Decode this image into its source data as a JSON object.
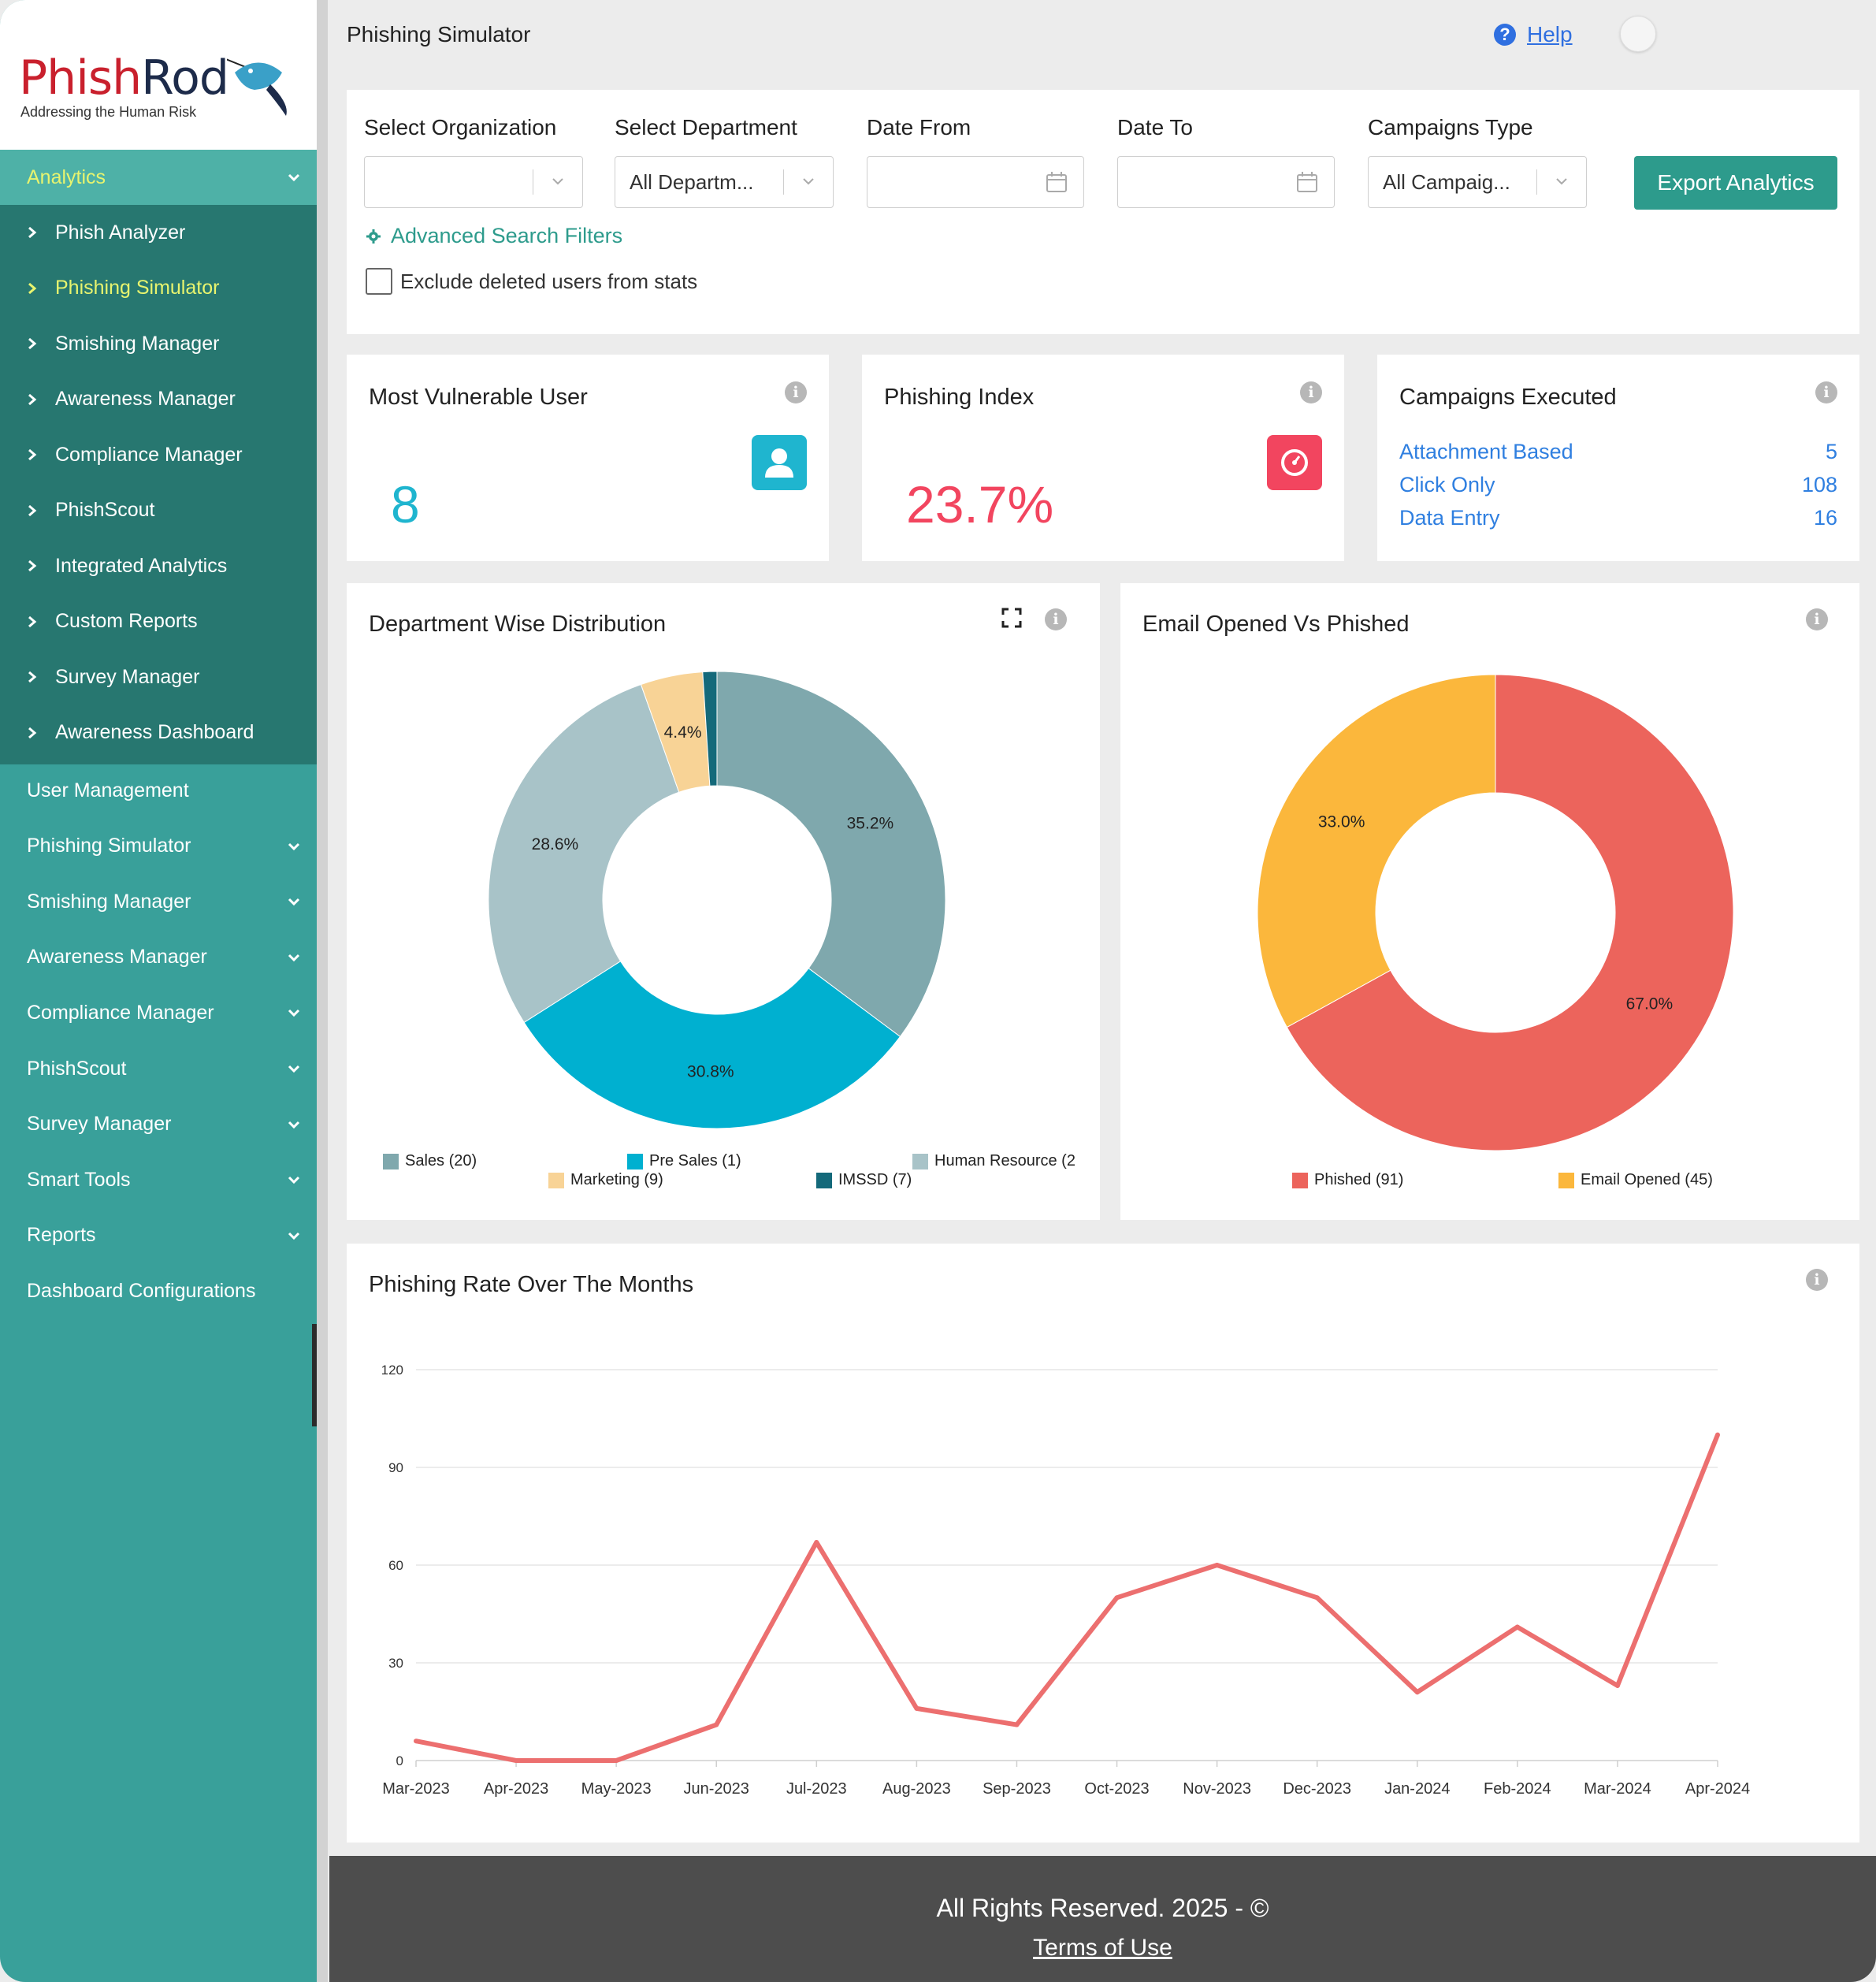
{
  "brand": {
    "name_part1": "Phish",
    "name_part2": "Rod",
    "tagline": "Addressing the Human Risk"
  },
  "sidebar": {
    "analytics_label": "Analytics",
    "sub_items": [
      {
        "label": "Phish Analyzer",
        "active": false
      },
      {
        "label": "Phishing Simulator",
        "active": true
      },
      {
        "label": "Smishing Manager",
        "active": false
      },
      {
        "label": "Awareness Manager",
        "active": false
      },
      {
        "label": "Compliance Manager",
        "active": false
      },
      {
        "label": "PhishScout",
        "active": false
      },
      {
        "label": "Integrated Analytics",
        "active": false
      },
      {
        "label": "Custom Reports",
        "active": false
      },
      {
        "label": "Survey Manager",
        "active": false
      },
      {
        "label": "Awareness Dashboard",
        "active": false
      }
    ],
    "main_items": [
      {
        "label": "User Management",
        "has_chevron": false
      },
      {
        "label": "Phishing Simulator",
        "has_chevron": true
      },
      {
        "label": "Smishing Manager",
        "has_chevron": true
      },
      {
        "label": "Awareness Manager",
        "has_chevron": true
      },
      {
        "label": "Compliance Manager",
        "has_chevron": true
      },
      {
        "label": "PhishScout",
        "has_chevron": true
      },
      {
        "label": "Survey Manager",
        "has_chevron": true
      },
      {
        "label": "Smart Tools",
        "has_chevron": true
      },
      {
        "label": "Reports",
        "has_chevron": true
      },
      {
        "label": "Dashboard Configurations",
        "has_chevron": false
      }
    ]
  },
  "header": {
    "title": "Phishing Simulator",
    "help_label": "Help"
  },
  "filters": {
    "org_label": "Select Organization",
    "org_value": "",
    "dept_label": "Select Department",
    "dept_value": "All Departm...",
    "date_from_label": "Date From",
    "date_from_value": "",
    "date_to_label": "Date To",
    "date_to_value": "",
    "campaign_type_label": "Campaigns Type",
    "campaign_type_value": "All Campaig...",
    "export_label": "Export Analytics",
    "advanced_label": "Advanced Search Filters",
    "exclude_label": "Exclude deleted users from stats"
  },
  "stats": {
    "vulnerable_title": "Most Vulnerable User",
    "vulnerable_value": "8",
    "index_title": "Phishing Index",
    "index_value": "23.7%",
    "campaigns_title": "Campaigns Executed",
    "campaigns": [
      {
        "label": "Attachment Based",
        "value": "5"
      },
      {
        "label": "Click Only",
        "value": "108"
      },
      {
        "label": "Data Entry",
        "value": "16"
      }
    ]
  },
  "colors": {
    "accent": "#2d9b8c",
    "sidebar": "#39a09a",
    "sidebar_dark": "#277770",
    "active": "#e8f46e",
    "index_red": "#f2455f",
    "user_cyan": "#1fb5cf",
    "link_blue": "#2f7fe0",
    "line": "#ec6f6f"
  },
  "chart_data": [
    {
      "type": "pie",
      "title": "Department Wise Distribution",
      "slices": [
        {
          "name": "Sales (20)",
          "value": 35.2,
          "label": "35.2%",
          "color": "#7fa8ad"
        },
        {
          "name": "Pre Sales (1)",
          "value": 30.8,
          "label": "30.8%",
          "color": "#00b0d0"
        },
        {
          "name": "Human Resource (2",
          "value": 28.6,
          "label": "28.6%",
          "color": "#a8c3c8"
        },
        {
          "name": "Marketing (9)",
          "value": 4.4,
          "label": "4.4%",
          "color": "#f8d396"
        },
        {
          "name": "IMSSD (7)",
          "value": 1.0,
          "label": "",
          "color": "#14697a"
        }
      ],
      "legend_order": [
        0,
        1,
        2,
        3,
        4
      ]
    },
    {
      "type": "pie",
      "title": "Email Opened Vs Phished",
      "slices": [
        {
          "name": "Phished (91)",
          "value": 67.0,
          "label": "67.0%",
          "color": "#ec645c"
        },
        {
          "name": "Email Opened (45)",
          "value": 33.0,
          "label": "33.0%",
          "color": "#fbb73c"
        }
      ]
    },
    {
      "type": "line",
      "title": "Phishing Rate Over The Months",
      "x": [
        "Mar-2023",
        "Apr-2023",
        "May-2023",
        "Jun-2023",
        "Jul-2023",
        "Aug-2023",
        "Sep-2023",
        "Oct-2023",
        "Nov-2023",
        "Dec-2023",
        "Jan-2024",
        "Feb-2024",
        "Mar-2024",
        "Apr-2024"
      ],
      "series": [
        {
          "values": [
            6,
            0,
            0,
            11,
            67,
            16,
            11,
            50,
            60,
            50,
            21,
            41,
            23,
            100
          ]
        }
      ],
      "yticks": [
        "0",
        "30",
        "60",
        "90",
        "120"
      ],
      "ylim": [
        0,
        120
      ],
      "grid": true
    }
  ],
  "footer": {
    "rights": "All Rights Reserved. 2025 - ©",
    "terms": "Terms of Use"
  }
}
